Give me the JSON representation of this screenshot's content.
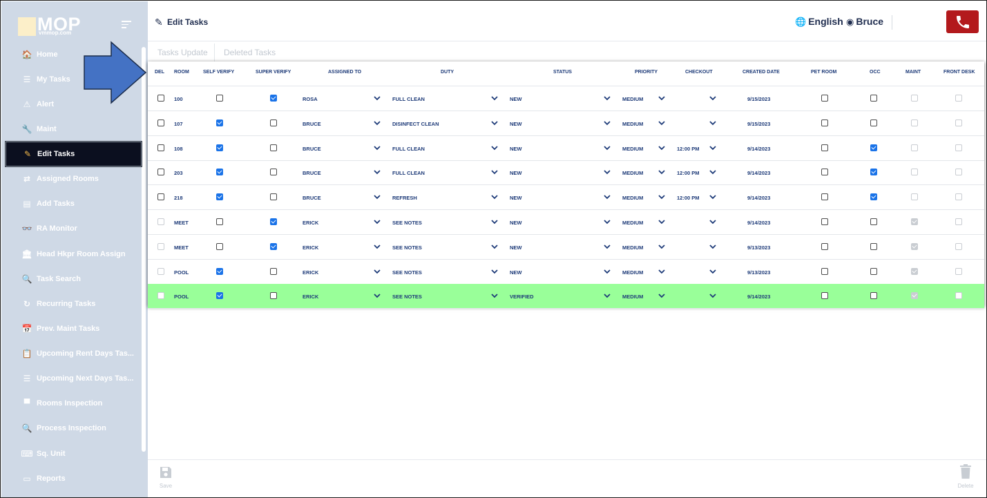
{
  "logo": {
    "text": "MOP",
    "sub": "vmmop.com"
  },
  "sidebar": {
    "items": [
      {
        "label": "Home",
        "icon": "home-icon",
        "glyph": "🏠"
      },
      {
        "label": "My Tasks",
        "icon": "list-icon",
        "glyph": "☰"
      },
      {
        "label": "Alert",
        "icon": "alert-icon",
        "glyph": "⚠"
      },
      {
        "label": "Maint",
        "icon": "wrench-icon",
        "glyph": "🔧"
      },
      {
        "label": "Edit Tasks",
        "icon": "edit-icon",
        "glyph": "✎",
        "active": true
      },
      {
        "label": "Assigned Rooms",
        "icon": "swap-icon",
        "glyph": "⇄"
      },
      {
        "label": "Add Tasks",
        "icon": "table-icon",
        "glyph": "▤"
      },
      {
        "label": "RA Monitor",
        "icon": "binoculars-icon",
        "glyph": "👓"
      },
      {
        "label": "Head Hkpr Room Assign",
        "icon": "building-icon",
        "glyph": "🏛"
      },
      {
        "label": "Task Search",
        "icon": "search-icon",
        "glyph": "🔍"
      },
      {
        "label": "Recurring Tasks",
        "icon": "refresh-icon",
        "glyph": "↻"
      },
      {
        "label": "Prev. Maint Tasks",
        "icon": "calendar-icon",
        "glyph": "📅"
      },
      {
        "label": "Upcoming Rent Days Tas...",
        "icon": "clipboard-icon",
        "glyph": "📋"
      },
      {
        "label": "Upcoming Next Days Tas...",
        "icon": "list-icon",
        "glyph": "☰"
      },
      {
        "label": "Rooms Inspection",
        "icon": "monitor-icon",
        "glyph": "▀"
      },
      {
        "label": "Process Inspection",
        "icon": "magnify-icon",
        "glyph": "🔍"
      },
      {
        "label": "Sq. Unit",
        "icon": "keyboard-icon",
        "glyph": "⌨"
      },
      {
        "label": "Reports",
        "icon": "card-icon",
        "glyph": "▭"
      }
    ]
  },
  "header": {
    "title": "Edit Tasks",
    "language": "English",
    "user": "Bruce"
  },
  "tabs": {
    "update": "Tasks Update",
    "deleted": "Deleted Tasks"
  },
  "table": {
    "columns": [
      "DEL",
      "ROOM",
      "SELF VERIFY",
      "SUPER VERIFY",
      "ASSIGNED TO",
      "DUTY",
      "STATUS",
      "PRIORITY",
      "CHECKOUT",
      "CREATED DATE",
      "PET ROOM",
      "OCC",
      "MAINT",
      "FRONT DESK"
    ],
    "rows": [
      {
        "del": false,
        "del_dim": false,
        "room": "100",
        "self": false,
        "super": true,
        "assigned": "ROSA",
        "duty": "FULL CLEAN",
        "status": "NEW",
        "priority": "MEDIUM",
        "checkout": "",
        "created": "9/15/2023",
        "pet": false,
        "occ": false,
        "maint": false,
        "front": false,
        "verified": false
      },
      {
        "del": false,
        "del_dim": false,
        "room": "107",
        "self": true,
        "super": false,
        "assigned": "BRUCE",
        "duty": "DISINFECT CLEAN",
        "status": "NEW",
        "priority": "MEDIUM",
        "checkout": "",
        "created": "9/15/2023",
        "pet": false,
        "occ": false,
        "maint": false,
        "front": false,
        "verified": false
      },
      {
        "del": false,
        "del_dim": false,
        "room": "108",
        "self": true,
        "super": false,
        "assigned": "BRUCE",
        "duty": "FULL CLEAN",
        "status": "NEW",
        "priority": "MEDIUM",
        "checkout": "12:00 PM",
        "created": "9/14/2023",
        "pet": false,
        "occ": true,
        "maint": false,
        "front": false,
        "verified": false
      },
      {
        "del": false,
        "del_dim": false,
        "room": "203",
        "self": true,
        "super": false,
        "assigned": "BRUCE",
        "duty": "FULL CLEAN",
        "status": "NEW",
        "priority": "MEDIUM",
        "checkout": "12:00 PM",
        "created": "9/14/2023",
        "pet": false,
        "occ": true,
        "maint": false,
        "front": false,
        "verified": false
      },
      {
        "del": false,
        "del_dim": false,
        "room": "218",
        "self": true,
        "super": false,
        "assigned": "BRUCE",
        "duty": "REFRESH",
        "status": "NEW",
        "priority": "MEDIUM",
        "checkout": "12:00 PM",
        "created": "9/14/2023",
        "pet": false,
        "occ": true,
        "maint": false,
        "front": false,
        "verified": false
      },
      {
        "del": false,
        "del_dim": true,
        "room": "MEET",
        "self": false,
        "super": true,
        "assigned": "ERICK",
        "duty": "SEE NOTES",
        "status": "NEW",
        "priority": "MEDIUM",
        "checkout": "",
        "created": "9/14/2023",
        "pet": false,
        "occ": false,
        "maint": true,
        "front": false,
        "verified": false
      },
      {
        "del": false,
        "del_dim": true,
        "room": "MEET",
        "self": false,
        "super": true,
        "assigned": "ERICK",
        "duty": "SEE NOTES",
        "status": "NEW",
        "priority": "MEDIUM",
        "checkout": "",
        "created": "9/13/2023",
        "pet": false,
        "occ": false,
        "maint": true,
        "front": false,
        "verified": false
      },
      {
        "del": false,
        "del_dim": true,
        "room": "POOL",
        "self": true,
        "super": false,
        "assigned": "ERICK",
        "duty": "SEE NOTES",
        "status": "NEW",
        "priority": "MEDIUM",
        "checkout": "",
        "created": "9/13/2023",
        "pet": false,
        "occ": false,
        "maint": true,
        "front": false,
        "verified": false
      },
      {
        "del": false,
        "del_dim": true,
        "room": "POOL",
        "self": true,
        "super": false,
        "assigned": "ERICK",
        "duty": "SEE NOTES",
        "status": "VERIFIED",
        "priority": "MEDIUM",
        "checkout": "",
        "created": "9/14/2023",
        "pet": false,
        "occ": false,
        "maint": true,
        "front": false,
        "verified": true
      }
    ]
  },
  "footer": {
    "save": "Save",
    "delete": "Delete"
  },
  "colors": {
    "sidebar": "#cfd9e6",
    "active": "#0b0f1f",
    "text": "#1d3a78",
    "verified_row": "#99ff99",
    "phone": "#b3191c",
    "arrow": "#4472c4"
  }
}
